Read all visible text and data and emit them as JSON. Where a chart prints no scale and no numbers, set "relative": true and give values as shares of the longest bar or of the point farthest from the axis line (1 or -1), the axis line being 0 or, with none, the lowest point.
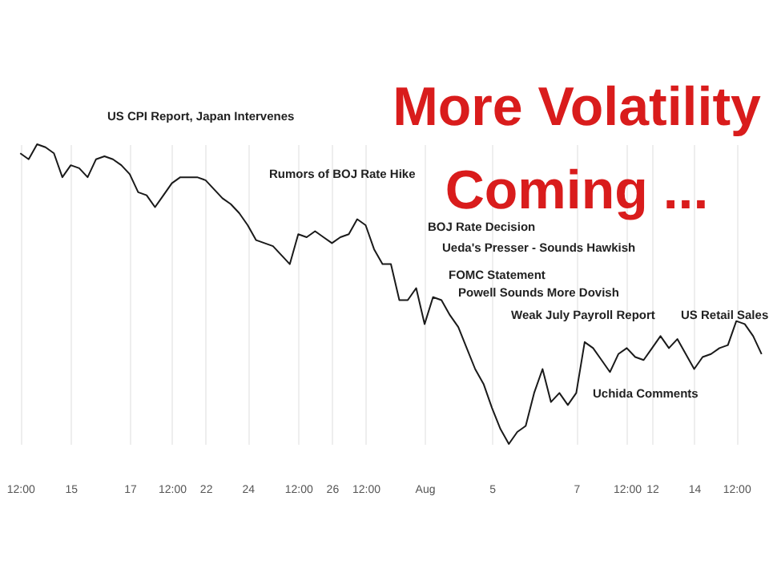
{
  "chart_data": {
    "type": "line",
    "title": "More Volatility Coming ...",
    "relative": true,
    "grid": "x",
    "categories": [
      "12:00",
      null,
      null,
      null,
      null,
      null,
      "15",
      null,
      null,
      null,
      null,
      null,
      null,
      "17",
      null,
      null,
      null,
      null,
      "12:00",
      null,
      null,
      null,
      "22",
      null,
      null,
      null,
      null,
      "24",
      null,
      null,
      null,
      null,
      null,
      "12:00",
      null,
      null,
      null,
      "26",
      null,
      null,
      null,
      "12:00",
      null,
      null,
      null,
      null,
      null,
      null,
      "Aug",
      null,
      null,
      null,
      null,
      null,
      null,
      null,
      "5",
      null,
      null,
      null,
      null,
      null,
      null,
      null,
      null,
      null,
      "7",
      null,
      null,
      null,
      null,
      null,
      "12:00",
      null,
      null,
      "12",
      null,
      null,
      null,
      null,
      "14",
      null,
      null,
      null,
      null,
      "12:00",
      null,
      null,
      null
    ],
    "series": [
      {
        "color": "#1a1a1a",
        "values": [
          0.97,
          0.95,
          1.0,
          0.99,
          0.97,
          0.89,
          0.93,
          0.92,
          0.89,
          0.95,
          0.96,
          0.95,
          0.93,
          0.9,
          0.84,
          0.83,
          0.79,
          0.83,
          0.87,
          0.89,
          0.89,
          0.89,
          0.88,
          0.85,
          0.82,
          0.8,
          0.77,
          0.73,
          0.68,
          0.67,
          0.66,
          0.63,
          0.6,
          0.7,
          0.69,
          0.71,
          0.69,
          0.67,
          0.69,
          0.7,
          0.75,
          0.73,
          0.65,
          0.6,
          0.6,
          0.48,
          0.48,
          0.52,
          0.4,
          0.49,
          0.48,
          0.43,
          0.39,
          0.32,
          0.25,
          0.2,
          0.12,
          0.05,
          0.0,
          0.04,
          0.06,
          0.17,
          0.25,
          0.14,
          0.17,
          0.13,
          0.17,
          0.34,
          0.32,
          0.28,
          0.24,
          0.3,
          0.32,
          0.29,
          0.28,
          0.32,
          0.36,
          0.32,
          0.35,
          0.3,
          0.25,
          0.29,
          0.3,
          0.32,
          0.33,
          0.41,
          0.4,
          0.36,
          0.3
        ]
      }
    ],
    "annotations": [
      "US CPI Report, Japan Intervenes",
      "Rumors of BOJ Rate Hike",
      "BOJ Rate Decision",
      "Ueda's Presser - Sounds Hawkish",
      "FOMC Statement",
      "Powell Sounds More Dovish",
      "Weak July Payroll Report",
      "US Retail Sales",
      "Uchida Comments"
    ]
  }
}
